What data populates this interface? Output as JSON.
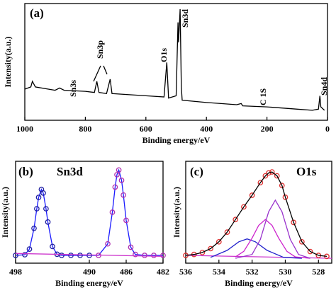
{
  "chart_data": [
    {
      "type": "line",
      "panel_label": "(a)",
      "xlabel": "Binding energy/eV",
      "ylabel": "Intensity(a.u.)",
      "xlim": [
        1000,
        0
      ],
      "xticks": [
        1000,
        800,
        600,
        400,
        200,
        0
      ],
      "ylim": [
        0,
        105
      ],
      "annotations": [
        "Sn3s",
        "Sn3p",
        "O1s",
        "Sn3d",
        "C 1S",
        "Sn4d"
      ],
      "series": [
        {
          "color": "#000000",
          "line": true,
          "x": [
            1000,
            980,
            975,
            965,
            900,
            885,
            870,
            800,
            770,
            762,
            755,
            730,
            718,
            712,
            600,
            540,
            531,
            525,
            500,
            494,
            492,
            487,
            483,
            480,
            400,
            300,
            285,
            280,
            200,
            150,
            100,
            50,
            30,
            25,
            22,
            10
          ],
          "values": [
            28,
            30,
            35,
            30,
            27,
            29,
            27,
            26,
            25,
            35,
            25,
            24,
            37,
            24,
            22,
            21,
            52,
            20,
            22,
            88,
            70,
            100,
            30,
            18,
            16,
            14,
            15,
            13,
            12,
            11,
            10,
            9,
            10,
            22,
            12,
            9
          ]
        }
      ]
    },
    {
      "type": "line",
      "panel_label": "(b)",
      "title": "Sn3d",
      "xlabel": "Binding energy/eV",
      "ylabel": "Intensity(a.u.)",
      "xlim": [
        498,
        482
      ],
      "xticks": [
        498,
        490,
        486,
        482
      ],
      "ylim": [
        0,
        105
      ],
      "series": [
        {
          "color": "#1a1aff",
          "line": true,
          "x": [
            498,
            497,
            496.5,
            496,
            495.7,
            495.5,
            495.2,
            495,
            494.7,
            494.5,
            494,
            493.5,
            493,
            492,
            491,
            490,
            489,
            488,
            487.5,
            487.2,
            487,
            486.8,
            486.5,
            486.3,
            486,
            485.5,
            485,
            484,
            483,
            482
          ],
          "values": [
            8,
            8.7,
            14.5,
            35.9,
            56.1,
            67.8,
            76,
            72.3,
            56.1,
            42.4,
            17.2,
            9.2,
            8,
            8,
            8,
            8,
            8,
            19.9,
            52.5,
            78.4,
            91.2,
            96,
            85.4,
            70.2,
            44.1,
            16.4,
            9,
            8,
            8,
            8
          ]
        },
        {
          "marker_color": "#2020a0",
          "marker": "circle",
          "x": [
            498,
            497,
            496.5,
            496,
            495.7,
            495.5,
            495.2,
            495,
            494.7,
            494.5,
            494,
            493.5,
            493,
            492,
            491,
            490
          ],
          "values": [
            8,
            8.7,
            14.5,
            35.9,
            56.1,
            67.8,
            76,
            72.3,
            56.1,
            42.4,
            17.2,
            9.2,
            8,
            8,
            8,
            8
          ]
        },
        {
          "marker_color": "#b030b0",
          "marker": "circle",
          "x": [
            489,
            488,
            487.5,
            487.2,
            487,
            486.8,
            486.5,
            486.3,
            486,
            485.5,
            485,
            484,
            483,
            482
          ],
          "values": [
            8,
            19.9,
            52.5,
            78.4,
            91.2,
            96,
            85.4,
            70.2,
            44.1,
            16.4,
            9,
            8,
            8,
            8
          ]
        },
        {
          "color": "#cc33cc",
          "line": true,
          "x": [
            498,
            482
          ],
          "values": [
            10,
            7
          ]
        }
      ]
    },
    {
      "type": "line",
      "panel_label": "(c)",
      "title": "O1s",
      "xlabel": "Binding energy/eV",
      "ylabel": "Intensity(a.u.)",
      "xlim": [
        536,
        527.2
      ],
      "xticks": [
        536,
        534,
        532,
        530,
        528
      ],
      "ylim": [
        0,
        105
      ],
      "series": [
        {
          "color": "#cc33cc",
          "line": true,
          "x": [
            536,
            527.2
          ],
          "values": [
            8,
            5
          ]
        },
        {
          "color": "#2222cc",
          "line": true,
          "x": [
            534.5,
            533.5,
            532.8,
            532.3,
            531.8,
            531.1,
            530.1,
            529
          ],
          "values": [
            6,
            13.2,
            22,
            25,
            22,
            13.2,
            6,
            5
          ]
        },
        {
          "color": "#cc22cc",
          "line": true,
          "x": [
            533,
            532.5,
            532,
            531.6,
            531.2,
            530.8,
            530.4,
            529.9,
            529.4,
            528.5
          ],
          "values": [
            6.5,
            12.2,
            25.8,
            39,
            45,
            39,
            25.8,
            12.2,
            6.5,
            5
          ]
        },
        {
          "color": "#9933cc",
          "line": true,
          "x": [
            533,
            532,
            531.5,
            531,
            530.6,
            530.2,
            529.7,
            529.2,
            528.5
          ],
          "values": [
            5,
            9,
            24.5,
            53,
            65,
            53,
            24.5,
            9,
            5
          ]
        },
        {
          "marker_color": "#e03030",
          "marker": "circle",
          "x": [
            536,
            535.5,
            535,
            534.5,
            534,
            533.5,
            533,
            532.5,
            532,
            531.5,
            531.2,
            531,
            530.8,
            530.5,
            530.2,
            530,
            529.5,
            529,
            528.5,
            528,
            527.5
          ],
          "values": [
            8,
            9,
            11,
            15,
            22,
            32,
            45,
            58,
            70,
            83,
            90,
            93,
            94,
            90,
            80,
            68,
            42,
            22,
            12,
            8,
            7
          ]
        },
        {
          "color": "#000000",
          "line": true,
          "x": [
            536,
            535.5,
            535,
            534.5,
            534,
            533.5,
            533,
            532.5,
            532,
            531.5,
            531.2,
            531,
            530.8,
            530.5,
            530.2,
            530,
            529.5,
            529,
            528.5,
            528,
            527.5
          ],
          "values": [
            8,
            9,
            11,
            15,
            22,
            32,
            45,
            58,
            70,
            83,
            90,
            93,
            94,
            90,
            80,
            68,
            42,
            22,
            12,
            8,
            7
          ]
        }
      ]
    }
  ]
}
